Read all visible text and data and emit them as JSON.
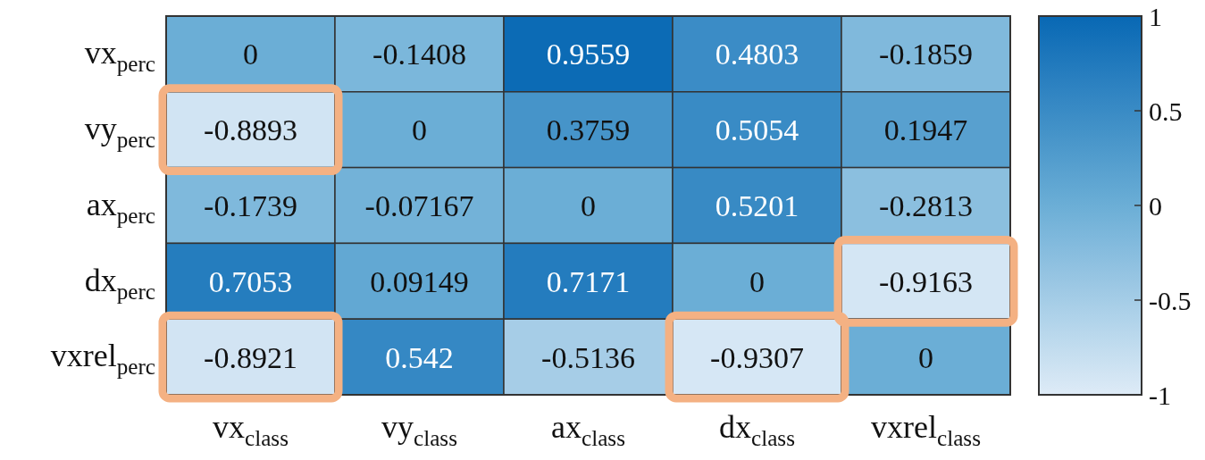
{
  "chart_data": {
    "type": "heatmap",
    "categories": [
      "vx$_{class}$",
      "vy$_{class}$",
      "ax$_{class}$",
      "dx$_{class}$",
      "vxrel$_{class}$"
    ],
    "y_categories": [
      "vx$_{perc}$",
      "vy$_{perc}$",
      "ax$_{perc}$",
      "dx$_{perc}$",
      "vxrel$_{perc}$"
    ],
    "cells": [
      [
        0,
        -0.1408,
        0.9559,
        0.4803,
        -0.1859
      ],
      [
        -0.8893,
        0,
        0.3759,
        0.5054,
        0.1947
      ],
      [
        -0.1739,
        -0.07167,
        0,
        0.5201,
        -0.2813
      ],
      [
        0.7053,
        0.09149,
        0.7171,
        0,
        -0.9163
      ],
      [
        -0.8921,
        0.542,
        -0.5136,
        -0.9307,
        0
      ]
    ],
    "clim": [
      -1,
      1
    ],
    "cticks": [
      -1,
      -0.5,
      0,
      0.5,
      1
    ],
    "data_labels": true
  }
}
